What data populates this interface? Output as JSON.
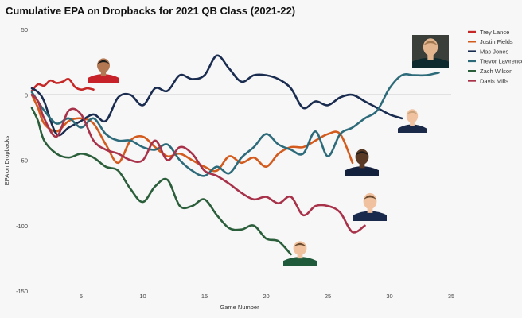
{
  "chart_data": {
    "type": "line",
    "title": "Cumulative EPA on Dropbacks for 2021 QB Class (2021-22)",
    "xlabel": "Game Number",
    "ylabel": "EPA on Dropbacks",
    "xlim": [
      1,
      35
    ],
    "ylim": [
      -150,
      50
    ],
    "xticks": [
      5,
      10,
      15,
      20,
      25,
      30,
      35
    ],
    "yticks": [
      50,
      0,
      -50,
      -100,
      -150
    ],
    "grid": false,
    "legend_position": "top-right",
    "series": [
      {
        "name": "Trey Lance",
        "color": "#c62828",
        "x": [
          1,
          1.5,
          2,
          2.5,
          3,
          3.5,
          4,
          4.5,
          5,
          5.5,
          6
        ],
        "y": [
          3,
          8,
          7,
          11,
          9,
          10,
          12,
          6,
          4,
          5,
          4
        ]
      },
      {
        "name": "Justin Fields",
        "color": "#d35b1e",
        "x": [
          1,
          1.5,
          2,
          3,
          4,
          5,
          6,
          7,
          8,
          9,
          10,
          11,
          12,
          13,
          14,
          15,
          16,
          17,
          18,
          19,
          20,
          21,
          22,
          23,
          24,
          25,
          26,
          27
        ],
        "y": [
          0,
          -10,
          -22,
          -28,
          -20,
          -18,
          -22,
          -38,
          -52,
          -35,
          -32,
          -40,
          -47,
          -45,
          -50,
          -55,
          -58,
          -47,
          -52,
          -48,
          -55,
          -45,
          -40,
          -40,
          -35,
          -30,
          -30,
          -52
        ]
      },
      {
        "name": "Mac Jones",
        "color": "#1a2c50",
        "x": [
          1,
          1.5,
          2,
          3,
          4,
          5,
          6,
          7,
          8,
          9,
          10,
          11,
          12,
          13,
          14,
          15,
          16,
          17,
          18,
          19,
          20,
          21,
          22,
          23,
          24,
          25,
          26,
          27,
          28,
          29,
          30,
          31
        ],
        "y": [
          5,
          2,
          -5,
          -30,
          -25,
          -20,
          -15,
          -20,
          -2,
          0,
          -8,
          5,
          3,
          15,
          12,
          15,
          30,
          20,
          10,
          15,
          15,
          12,
          5,
          -10,
          -5,
          -8,
          -2,
          0,
          -5,
          -10,
          -15,
          -18
        ]
      },
      {
        "name": "Trevor Lawrence",
        "color": "#2e6b7a",
        "x": [
          1,
          1.5,
          2,
          3,
          4,
          5,
          6,
          7,
          8,
          9,
          10,
          11,
          12,
          13,
          14,
          15,
          16,
          17,
          18,
          19,
          20,
          21,
          22,
          23,
          24,
          25,
          26,
          27,
          28,
          29,
          30,
          31,
          32,
          33,
          34
        ],
        "y": [
          2,
          -5,
          -12,
          -22,
          -18,
          -25,
          -18,
          -30,
          -35,
          -35,
          -40,
          -42,
          -38,
          -50,
          -58,
          -62,
          -55,
          -60,
          -48,
          -40,
          -30,
          -38,
          -42,
          -45,
          -28,
          -47,
          -30,
          -25,
          -18,
          -12,
          5,
          15,
          15,
          15,
          17
        ]
      },
      {
        "name": "Zach Wilson",
        "color": "#2b5e3a",
        "x": [
          1,
          1.5,
          2,
          3,
          4,
          5,
          6,
          7,
          8,
          9,
          10,
          11,
          12,
          13,
          14,
          15,
          16,
          17,
          18,
          19,
          20,
          21,
          22
        ],
        "y": [
          -10,
          -20,
          -35,
          -45,
          -48,
          -45,
          -48,
          -55,
          -58,
          -72,
          -82,
          -70,
          -65,
          -85,
          -85,
          -80,
          -92,
          -102,
          -103,
          -100,
          -110,
          -112,
          -122
        ]
      },
      {
        "name": "Davis Mills",
        "color": "#a8324a",
        "x": [
          1,
          1.5,
          2,
          3,
          4,
          5,
          6,
          7,
          8,
          9,
          10,
          11,
          12,
          13,
          14,
          15,
          16,
          17,
          18,
          19,
          20,
          21,
          22,
          23,
          24,
          25,
          26,
          27,
          28
        ],
        "y": [
          0,
          -5,
          -18,
          -32,
          -12,
          -15,
          -35,
          -42,
          -45,
          -50,
          -50,
          -35,
          -50,
          -40,
          -45,
          -58,
          -62,
          -68,
          -75,
          -80,
          -78,
          -83,
          -78,
          -92,
          -85,
          -85,
          -90,
          -105,
          -100
        ]
      }
    ]
  },
  "player_photos": [
    {
      "name": "Trey Lance",
      "jersey_color": "#c7222a",
      "skin": "#b37852",
      "hair": "#1a1a1a",
      "dark_bg": false
    },
    {
      "name": "Trevor Lawrence",
      "jersey_color": "#0f2a2e",
      "skin": "#e3b58f",
      "hair": "#a07850",
      "dark_bg": true
    },
    {
      "name": "Mac Jones",
      "jersey_color": "#1b2a48",
      "skin": "#f0c2a0",
      "hair": "#c7a27a",
      "dark_bg": false
    },
    {
      "name": "Justin Fields",
      "jersey_color": "#14213d",
      "skin": "#5a3a24",
      "hair": "#1a1a1a",
      "dark_bg": false
    },
    {
      "name": "Davis Mills",
      "jersey_color": "#1a2a4c",
      "skin": "#f0c2a0",
      "hair": "#6b4a2e",
      "dark_bg": false
    },
    {
      "name": "Zach Wilson",
      "jersey_color": "#1f5a3a",
      "skin": "#f0c2a0",
      "hair": "#6b4a2e",
      "dark_bg": false
    }
  ]
}
